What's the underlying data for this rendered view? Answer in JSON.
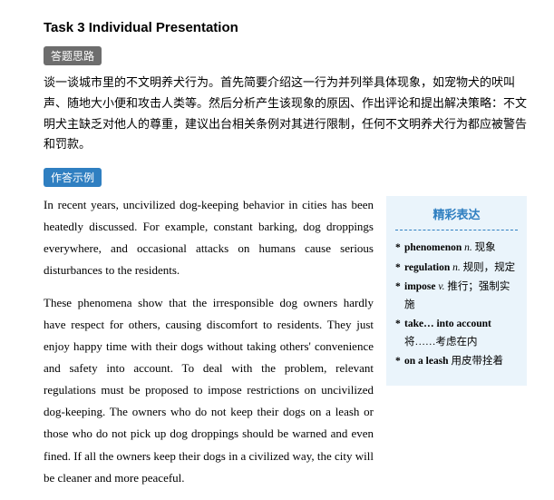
{
  "title": "Task 3 Individual Presentation",
  "sections": {
    "thinking": {
      "tag": "答题思路",
      "tag_bg": "#6d6d6d",
      "text": "谈一谈城市里的不文明养犬行为。首先简要介绍这一行为并列举具体现象，如宠物犬的吠叫声、随地大小便和攻击人类等。然后分析产生该现象的原因、作出评论和提出解决策略：不文明犬主缺乏对他人的尊重，建议出台相关条例对其进行限制，任何不文明养犬行为都应被警告和罚款。"
    },
    "example": {
      "tag": "作答示例",
      "tag_bg": "#2f7fc1",
      "paragraphs": [
        "In recent years, uncivilized dog-keeping behavior in cities has been heatedly discussed. For example, constant barking, dog droppings everywhere, and occasional attacks on humans cause serious disturbances to the residents.",
        "These phenomena show that the irresponsible dog owners hardly have respect for others, causing discomfort to residents. They just enjoy happy time with their dogs without taking others' convenience and safety into account. To deal with the problem, relevant regulations must be proposed to impose restrictions on uncivilized dog-keeping. The owners who do not keep their dogs on a leash or those who do not pick up dog droppings should be warned and even fined. If all the owners keep their dogs in a civilized way, the city will be cleaner and more peaceful."
      ]
    }
  },
  "sidebar": {
    "title": "精彩表达",
    "bg": "#eaf4fb",
    "title_color": "#2f7fc1",
    "items": [
      {
        "word": "phenomenon",
        "pos": "n.",
        "def": "现象"
      },
      {
        "word": "regulation",
        "pos": "n.",
        "def": "规则，规定"
      },
      {
        "word": "impose",
        "pos": "v.",
        "def": "推行；强制实施"
      },
      {
        "word": "take… into account",
        "pos": "",
        "def": "将……考虑在内"
      },
      {
        "word": "on a leash",
        "pos": "",
        "def": "用皮带拴着"
      }
    ]
  }
}
